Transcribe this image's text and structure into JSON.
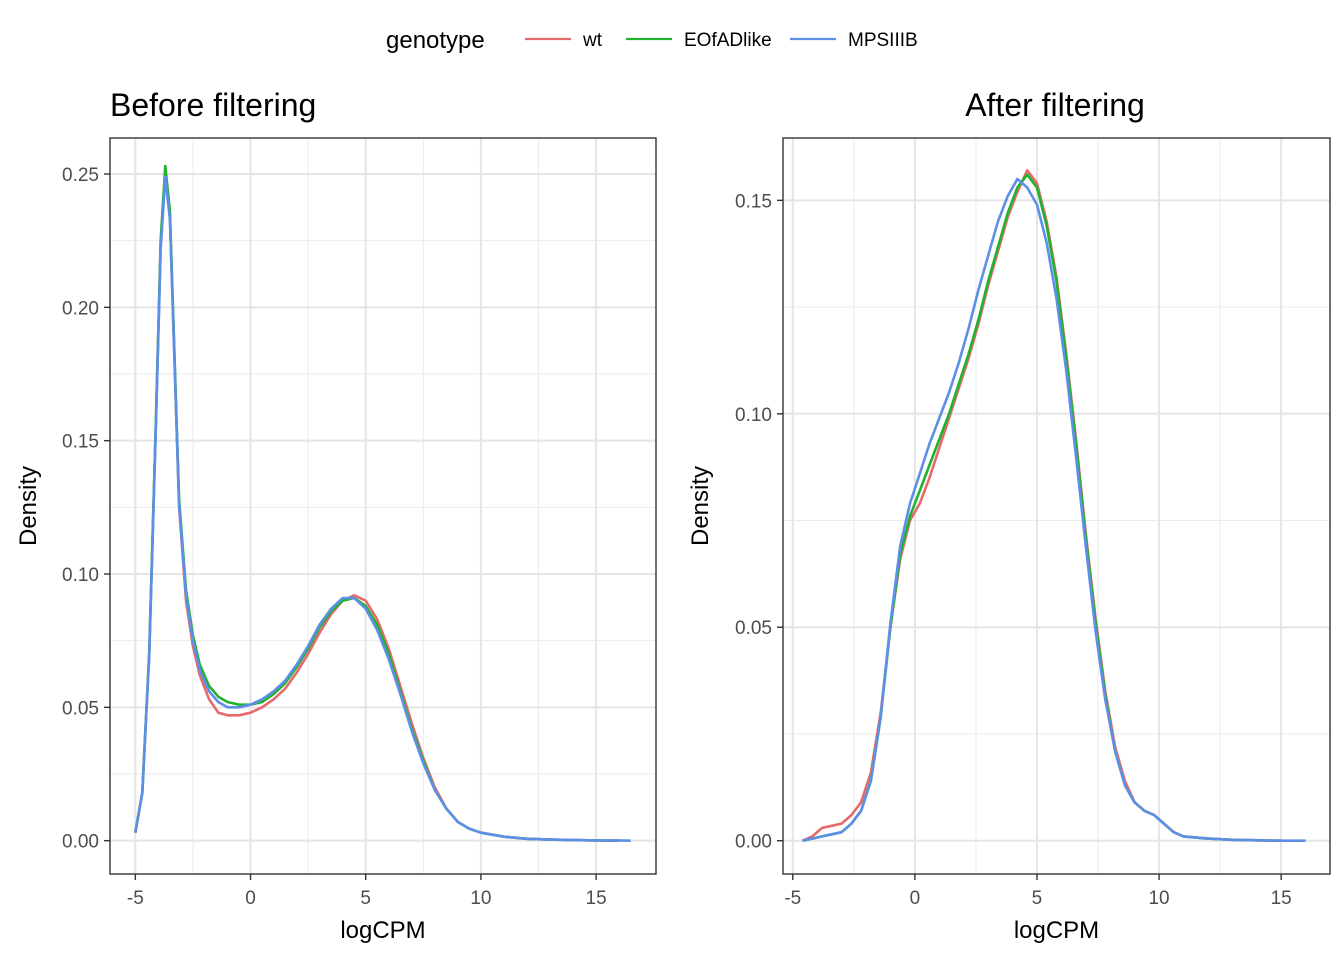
{
  "legend": {
    "title": "genotype",
    "items": [
      {
        "label": "wt",
        "color": "#E8696B"
      },
      {
        "label": "EOfADlike",
        "color": "#21B230"
      },
      {
        "label": "MPSIIIB",
        "color": "#5E8FE8"
      }
    ]
  },
  "chart_data": [
    {
      "type": "line",
      "title": "Before filtering",
      "xlabel": "logCPM",
      "ylabel": "Density",
      "xlim": [
        -6.1,
        17.6
      ],
      "ylim": [
        -0.0125,
        0.2635
      ],
      "xticks": [
        -5,
        0,
        5,
        10,
        15
      ],
      "xtick_labels": [
        "-5",
        "0",
        "5",
        "10",
        "15"
      ],
      "yticks": [
        0.0,
        0.05,
        0.1,
        0.15,
        0.2,
        0.25
      ],
      "ytick_labels": [
        "0.00",
        "0.05",
        "0.10",
        "0.15",
        "0.20",
        "0.25"
      ],
      "series": [
        {
          "name": "wt",
          "color": "#E8696B",
          "x": [
            -5,
            -4.7,
            -4.4,
            -4.1,
            -3.9,
            -3.7,
            -3.5,
            -3.3,
            -3.1,
            -2.8,
            -2.5,
            -2.2,
            -1.8,
            -1.4,
            -1,
            -0.5,
            0,
            0.5,
            1,
            1.5,
            2,
            2.5,
            3,
            3.5,
            4,
            4.5,
            5,
            5.5,
            6,
            6.5,
            7,
            7.5,
            8,
            8.5,
            9,
            9.5,
            10,
            11,
            12,
            13,
            14,
            15,
            16
          ],
          "y": [
            0.003,
            0.018,
            0.07,
            0.16,
            0.225,
            0.252,
            0.235,
            0.18,
            0.125,
            0.09,
            0.073,
            0.062,
            0.053,
            0.048,
            0.047,
            0.047,
            0.048,
            0.05,
            0.053,
            0.057,
            0.063,
            0.07,
            0.078,
            0.085,
            0.09,
            0.092,
            0.09,
            0.083,
            0.072,
            0.058,
            0.044,
            0.031,
            0.02,
            0.012,
            0.007,
            0.0045,
            0.003,
            0.0015,
            0.0007,
            0.0004,
            0.0002,
            0.0001,
            0.0
          ]
        },
        {
          "name": "EOfADlike",
          "color": "#21B230",
          "x": [
            -5,
            -4.7,
            -4.4,
            -4.1,
            -3.9,
            -3.7,
            -3.5,
            -3.3,
            -3.1,
            -2.8,
            -2.5,
            -2.2,
            -1.8,
            -1.4,
            -1,
            -0.5,
            0,
            0.5,
            1,
            1.5,
            2,
            2.5,
            3,
            3.5,
            4,
            4.5,
            5,
            5.5,
            6,
            6.5,
            7,
            7.5,
            8,
            8.5,
            9,
            9.5,
            10,
            11,
            12,
            13,
            14,
            15,
            16
          ],
          "y": [
            0.003,
            0.018,
            0.07,
            0.16,
            0.225,
            0.253,
            0.236,
            0.182,
            0.128,
            0.094,
            0.077,
            0.066,
            0.058,
            0.054,
            0.052,
            0.051,
            0.051,
            0.052,
            0.055,
            0.059,
            0.065,
            0.072,
            0.08,
            0.086,
            0.09,
            0.091,
            0.088,
            0.081,
            0.07,
            0.056,
            0.042,
            0.03,
            0.019,
            0.012,
            0.007,
            0.0045,
            0.003,
            0.0015,
            0.0007,
            0.0004,
            0.0002,
            0.0001,
            0.0
          ]
        },
        {
          "name": "MPSIIIB",
          "color": "#5E8FE8",
          "x": [
            -5,
            -4.7,
            -4.4,
            -4.1,
            -3.9,
            -3.7,
            -3.5,
            -3.3,
            -3.1,
            -2.8,
            -2.5,
            -2.2,
            -1.8,
            -1.4,
            -1,
            -0.5,
            0,
            0.5,
            1,
            1.5,
            2,
            2.5,
            3,
            3.5,
            4,
            4.5,
            5,
            5.5,
            6,
            6.5,
            7,
            7.5,
            8,
            8.5,
            9,
            9.5,
            10,
            11,
            12,
            13,
            14,
            15,
            16,
            16.5
          ],
          "y": [
            0.003,
            0.018,
            0.069,
            0.158,
            0.222,
            0.249,
            0.233,
            0.18,
            0.126,
            0.092,
            0.075,
            0.064,
            0.056,
            0.052,
            0.05,
            0.05,
            0.051,
            0.053,
            0.056,
            0.06,
            0.066,
            0.073,
            0.081,
            0.087,
            0.091,
            0.091,
            0.087,
            0.079,
            0.068,
            0.055,
            0.041,
            0.029,
            0.019,
            0.012,
            0.007,
            0.0045,
            0.003,
            0.0015,
            0.0007,
            0.0004,
            0.0002,
            0.0001,
            0.0001,
            0.0
          ]
        }
      ]
    },
    {
      "type": "line",
      "title": "After filtering",
      "xlabel": "logCPM",
      "ylabel": "Density",
      "xlim": [
        -5.4,
        17.0
      ],
      "ylim": [
        -0.0078,
        0.1646
      ],
      "xticks": [
        -5,
        0,
        5,
        10,
        15
      ],
      "xtick_labels": [
        "-5",
        "0",
        "5",
        "10",
        "15"
      ],
      "yticks": [
        0.0,
        0.05,
        0.1,
        0.15
      ],
      "ytick_labels": [
        "0.00",
        "0.05",
        "0.10",
        "0.15"
      ],
      "series": [
        {
          "name": "wt",
          "color": "#E8696B",
          "x": [
            -4.6,
            -4.2,
            -3.8,
            -3.4,
            -3,
            -2.6,
            -2.2,
            -1.8,
            -1.4,
            -1,
            -0.6,
            -0.2,
            0.2,
            0.6,
            1,
            1.4,
            1.8,
            2.2,
            2.6,
            3,
            3.4,
            3.8,
            4.2,
            4.6,
            5,
            5.4,
            5.8,
            6.2,
            6.6,
            7,
            7.4,
            7.8,
            8.2,
            8.6,
            9,
            9.4,
            9.8,
            10.2,
            10.6,
            11,
            12,
            13,
            14,
            15
          ],
          "y": [
            0.0,
            0.001,
            0.003,
            0.0035,
            0.004,
            0.006,
            0.009,
            0.016,
            0.03,
            0.05,
            0.066,
            0.075,
            0.079,
            0.085,
            0.092,
            0.099,
            0.106,
            0.113,
            0.121,
            0.13,
            0.138,
            0.146,
            0.152,
            0.157,
            0.154,
            0.145,
            0.132,
            0.114,
            0.094,
            0.072,
            0.052,
            0.035,
            0.022,
            0.014,
            0.009,
            0.007,
            0.006,
            0.004,
            0.002,
            0.001,
            0.0005,
            0.0002,
            0.0001,
            0.0
          ]
        },
        {
          "name": "EOfADlike",
          "color": "#21B230",
          "x": [
            -4.6,
            -4.2,
            -3.8,
            -3.4,
            -3,
            -2.6,
            -2.2,
            -1.8,
            -1.4,
            -1,
            -0.6,
            -0.2,
            0.2,
            0.6,
            1,
            1.4,
            1.8,
            2.2,
            2.6,
            3,
            3.4,
            3.8,
            4.2,
            4.6,
            5,
            5.4,
            5.8,
            6.2,
            6.6,
            7,
            7.4,
            7.8,
            8.2,
            8.6,
            9,
            9.4,
            9.8,
            10.2,
            10.6,
            11,
            12,
            13,
            14,
            15
          ],
          "y": [
            0.0,
            0.0005,
            0.001,
            0.0015,
            0.002,
            0.004,
            0.007,
            0.014,
            0.029,
            0.05,
            0.067,
            0.076,
            0.082,
            0.088,
            0.094,
            0.1,
            0.107,
            0.114,
            0.122,
            0.131,
            0.139,
            0.147,
            0.153,
            0.156,
            0.153,
            0.144,
            0.131,
            0.113,
            0.093,
            0.071,
            0.051,
            0.034,
            0.021,
            0.013,
            0.009,
            0.007,
            0.006,
            0.004,
            0.002,
            0.001,
            0.0005,
            0.0002,
            0.0001,
            0.0
          ]
        },
        {
          "name": "MPSIIIB",
          "color": "#5E8FE8",
          "x": [
            -4.6,
            -4.2,
            -3.8,
            -3.4,
            -3,
            -2.6,
            -2.2,
            -1.8,
            -1.4,
            -1,
            -0.6,
            -0.2,
            0.2,
            0.6,
            1,
            1.4,
            1.8,
            2.2,
            2.6,
            3,
            3.4,
            3.8,
            4.2,
            4.6,
            5,
            5.4,
            5.8,
            6.2,
            6.6,
            7,
            7.4,
            7.8,
            8.2,
            8.6,
            9,
            9.4,
            9.8,
            10.2,
            10.6,
            11,
            12,
            13,
            14,
            15,
            16
          ],
          "y": [
            0.0,
            0.0005,
            0.001,
            0.0015,
            0.002,
            0.004,
            0.007,
            0.014,
            0.029,
            0.051,
            0.069,
            0.079,
            0.086,
            0.093,
            0.099,
            0.105,
            0.112,
            0.12,
            0.129,
            0.137,
            0.145,
            0.151,
            0.155,
            0.153,
            0.149,
            0.14,
            0.127,
            0.11,
            0.09,
            0.069,
            0.049,
            0.033,
            0.021,
            0.013,
            0.009,
            0.007,
            0.006,
            0.004,
            0.002,
            0.001,
            0.0005,
            0.0002,
            0.0001,
            0.0,
            0.0
          ]
        }
      ]
    }
  ]
}
